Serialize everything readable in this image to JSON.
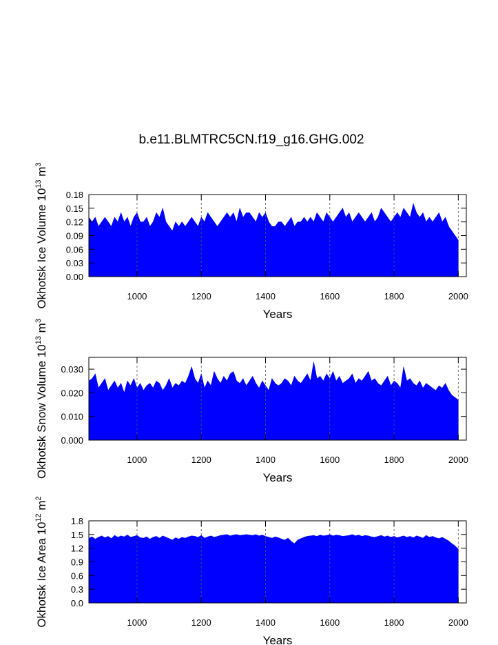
{
  "chart_data": [
    {
      "type": "area",
      "title": "b.e11.BLMTRC5CN.f19_g16.GHG.002",
      "ylabel": {
        "text": "Okhotsk Ice Volume 10",
        "exp": "13",
        "unit": " m",
        "unit_exp": "3"
      },
      "xlabel": "Years",
      "color": "#0000ff",
      "grid": true,
      "xlim": [
        850,
        2025
      ],
      "xticks": [
        1000,
        1200,
        1400,
        1600,
        1800,
        2000
      ],
      "ylim": [
        0,
        0.18
      ],
      "yticks": [
        {
          "value": 0,
          "label": "0.00"
        },
        0.03,
        0.06,
        0.09,
        0.12,
        0.15,
        0.18
      ],
      "x": [
        850,
        860,
        870,
        880,
        890,
        900,
        910,
        920,
        930,
        940,
        950,
        960,
        970,
        980,
        990,
        1000,
        1010,
        1020,
        1030,
        1040,
        1050,
        1060,
        1070,
        1080,
        1090,
        1100,
        1110,
        1120,
        1130,
        1140,
        1150,
        1160,
        1170,
        1180,
        1190,
        1200,
        1210,
        1220,
        1230,
        1240,
        1250,
        1260,
        1270,
        1280,
        1290,
        1300,
        1310,
        1320,
        1330,
        1340,
        1350,
        1360,
        1370,
        1380,
        1390,
        1400,
        1410,
        1420,
        1430,
        1440,
        1450,
        1460,
        1470,
        1480,
        1490,
        1500,
        1510,
        1520,
        1530,
        1540,
        1550,
        1560,
        1570,
        1580,
        1590,
        1600,
        1610,
        1620,
        1630,
        1640,
        1650,
        1660,
        1670,
        1680,
        1690,
        1700,
        1710,
        1720,
        1730,
        1740,
        1750,
        1760,
        1770,
        1780,
        1790,
        1800,
        1810,
        1820,
        1830,
        1840,
        1850,
        1860,
        1870,
        1880,
        1890,
        1900,
        1910,
        1920,
        1930,
        1940,
        1950,
        1960,
        1970,
        1980,
        1990,
        2000
      ],
      "values": [
        0.13,
        0.12,
        0.13,
        0.11,
        0.12,
        0.13,
        0.12,
        0.11,
        0.13,
        0.12,
        0.14,
        0.12,
        0.13,
        0.11,
        0.13,
        0.14,
        0.12,
        0.12,
        0.13,
        0.11,
        0.12,
        0.14,
        0.13,
        0.15,
        0.12,
        0.11,
        0.1,
        0.12,
        0.11,
        0.12,
        0.11,
        0.12,
        0.13,
        0.12,
        0.11,
        0.13,
        0.12,
        0.14,
        0.13,
        0.12,
        0.11,
        0.12,
        0.13,
        0.14,
        0.13,
        0.14,
        0.12,
        0.15,
        0.13,
        0.14,
        0.14,
        0.13,
        0.12,
        0.14,
        0.13,
        0.14,
        0.12,
        0.11,
        0.11,
        0.12,
        0.12,
        0.11,
        0.12,
        0.13,
        0.11,
        0.12,
        0.12,
        0.13,
        0.12,
        0.13,
        0.12,
        0.14,
        0.13,
        0.12,
        0.14,
        0.13,
        0.12,
        0.13,
        0.14,
        0.15,
        0.13,
        0.14,
        0.12,
        0.13,
        0.14,
        0.13,
        0.12,
        0.13,
        0.14,
        0.12,
        0.13,
        0.15,
        0.14,
        0.13,
        0.12,
        0.13,
        0.14,
        0.13,
        0.15,
        0.14,
        0.13,
        0.16,
        0.14,
        0.13,
        0.14,
        0.12,
        0.13,
        0.12,
        0.13,
        0.14,
        0.12,
        0.13,
        0.11,
        0.1,
        0.09,
        0.08
      ]
    },
    {
      "type": "area",
      "ylabel": {
        "text": "Okhotsk Snow Volume 10",
        "exp": "13",
        "unit": " m",
        "unit_exp": "3"
      },
      "xlabel": "Years",
      "color": "#0000ff",
      "grid": true,
      "xlim": [
        850,
        2025
      ],
      "xticks": [
        1000,
        1200,
        1400,
        1600,
        1800,
        2000
      ],
      "ylim": [
        0,
        0.035
      ],
      "yticks": [
        {
          "value": 0,
          "label": "0.000"
        },
        {
          "value": 0.01,
          "label": "0.010"
        },
        {
          "value": 0.02,
          "label": "0.020"
        },
        {
          "value": 0.03,
          "label": "0.030"
        }
      ],
      "x": [
        850,
        860,
        870,
        880,
        890,
        900,
        910,
        920,
        930,
        940,
        950,
        960,
        970,
        980,
        990,
        1000,
        1010,
        1020,
        1030,
        1040,
        1050,
        1060,
        1070,
        1080,
        1090,
        1100,
        1110,
        1120,
        1130,
        1140,
        1150,
        1160,
        1170,
        1180,
        1190,
        1200,
        1210,
        1220,
        1230,
        1240,
        1250,
        1260,
        1270,
        1280,
        1290,
        1300,
        1310,
        1320,
        1330,
        1340,
        1350,
        1360,
        1370,
        1380,
        1390,
        1400,
        1410,
        1420,
        1430,
        1440,
        1450,
        1460,
        1470,
        1480,
        1490,
        1500,
        1510,
        1520,
        1530,
        1540,
        1550,
        1560,
        1570,
        1580,
        1590,
        1600,
        1610,
        1620,
        1630,
        1640,
        1650,
        1660,
        1670,
        1680,
        1690,
        1700,
        1710,
        1720,
        1730,
        1740,
        1750,
        1760,
        1770,
        1780,
        1790,
        1800,
        1810,
        1820,
        1830,
        1840,
        1850,
        1860,
        1870,
        1880,
        1890,
        1900,
        1910,
        1920,
        1930,
        1940,
        1950,
        1960,
        1970,
        1980,
        1990,
        2000
      ],
      "values": [
        0.025,
        0.026,
        0.028,
        0.022,
        0.024,
        0.026,
        0.021,
        0.023,
        0.025,
        0.022,
        0.024,
        0.02,
        0.025,
        0.023,
        0.026,
        0.022,
        0.024,
        0.021,
        0.023,
        0.024,
        0.022,
        0.025,
        0.024,
        0.021,
        0.023,
        0.026,
        0.022,
        0.024,
        0.023,
        0.025,
        0.024,
        0.027,
        0.031,
        0.026,
        0.024,
        0.028,
        0.022,
        0.025,
        0.023,
        0.029,
        0.026,
        0.024,
        0.027,
        0.025,
        0.028,
        0.029,
        0.025,
        0.024,
        0.026,
        0.023,
        0.025,
        0.027,
        0.024,
        0.022,
        0.025,
        0.023,
        0.021,
        0.026,
        0.024,
        0.023,
        0.024,
        0.026,
        0.025,
        0.023,
        0.027,
        0.025,
        0.024,
        0.026,
        0.028,
        0.025,
        0.033,
        0.026,
        0.027,
        0.025,
        0.028,
        0.026,
        0.029,
        0.025,
        0.027,
        0.024,
        0.025,
        0.026,
        0.028,
        0.024,
        0.026,
        0.025,
        0.027,
        0.029,
        0.025,
        0.026,
        0.024,
        0.023,
        0.025,
        0.027,
        0.023,
        0.025,
        0.024,
        0.022,
        0.031,
        0.025,
        0.026,
        0.024,
        0.023,
        0.025,
        0.022,
        0.024,
        0.023,
        0.022,
        0.021,
        0.023,
        0.022,
        0.024,
        0.021,
        0.019,
        0.018,
        0.017
      ]
    },
    {
      "type": "area",
      "ylabel": {
        "text": "Okhotsk Ice Area 10",
        "exp": "12",
        "unit": " m",
        "unit_exp": "2"
      },
      "xlabel": "Years",
      "color": "#0000ff",
      "grid": true,
      "xlim": [
        850,
        2025
      ],
      "xticks": [
        1000,
        1200,
        1400,
        1600,
        1800,
        2000
      ],
      "ylim": [
        0,
        1.8
      ],
      "yticks": [
        {
          "value": 0,
          "label": "0.0"
        },
        0.3,
        0.6,
        0.9,
        1.2,
        1.5,
        1.8
      ],
      "x": [
        850,
        860,
        870,
        880,
        890,
        900,
        910,
        920,
        930,
        940,
        950,
        960,
        970,
        980,
        990,
        1000,
        1010,
        1020,
        1030,
        1040,
        1050,
        1060,
        1070,
        1080,
        1090,
        1100,
        1110,
        1120,
        1130,
        1140,
        1150,
        1160,
        1170,
        1180,
        1190,
        1200,
        1210,
        1220,
        1230,
        1240,
        1250,
        1260,
        1270,
        1280,
        1290,
        1300,
        1310,
        1320,
        1330,
        1340,
        1350,
        1360,
        1370,
        1380,
        1390,
        1400,
        1410,
        1420,
        1430,
        1440,
        1450,
        1460,
        1470,
        1480,
        1490,
        1500,
        1510,
        1520,
        1530,
        1540,
        1550,
        1560,
        1570,
        1580,
        1590,
        1600,
        1610,
        1620,
        1630,
        1640,
        1650,
        1660,
        1670,
        1680,
        1690,
        1700,
        1710,
        1720,
        1730,
        1740,
        1750,
        1760,
        1770,
        1780,
        1790,
        1800,
        1810,
        1820,
        1830,
        1840,
        1850,
        1860,
        1870,
        1880,
        1890,
        1900,
        1910,
        1920,
        1930,
        1940,
        1950,
        1960,
        1970,
        1980,
        1990,
        2000
      ],
      "values": [
        1.42,
        1.45,
        1.4,
        1.44,
        1.47,
        1.43,
        1.46,
        1.41,
        1.48,
        1.44,
        1.47,
        1.45,
        1.49,
        1.44,
        1.46,
        1.48,
        1.43,
        1.42,
        1.45,
        1.4,
        1.44,
        1.46,
        1.42,
        1.47,
        1.44,
        1.41,
        1.38,
        1.43,
        1.4,
        1.44,
        1.42,
        1.45,
        1.47,
        1.46,
        1.44,
        1.48,
        1.42,
        1.45,
        1.47,
        1.44,
        1.46,
        1.48,
        1.49,
        1.5,
        1.47,
        1.49,
        1.5,
        1.48,
        1.49,
        1.5,
        1.49,
        1.48,
        1.5,
        1.47,
        1.49,
        1.46,
        1.44,
        1.42,
        1.45,
        1.43,
        1.4,
        1.38,
        1.42,
        1.35,
        1.3,
        1.38,
        1.41,
        1.44,
        1.46,
        1.47,
        1.48,
        1.46,
        1.49,
        1.47,
        1.48,
        1.5,
        1.47,
        1.49,
        1.48,
        1.46,
        1.47,
        1.48,
        1.5,
        1.47,
        1.49,
        1.46,
        1.48,
        1.47,
        1.45,
        1.44,
        1.46,
        1.48,
        1.45,
        1.47,
        1.44,
        1.46,
        1.43,
        1.45,
        1.47,
        1.44,
        1.46,
        1.43,
        1.47,
        1.45,
        1.42,
        1.48,
        1.44,
        1.46,
        1.43,
        1.41,
        1.44,
        1.4,
        1.36,
        1.3,
        1.25,
        1.18
      ]
    }
  ]
}
